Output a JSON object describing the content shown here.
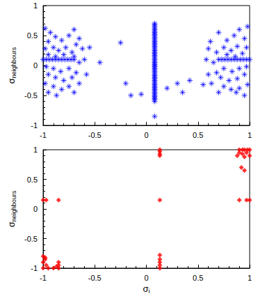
{
  "chart_data": [
    {
      "type": "scatter",
      "color": "#0000ff",
      "marker": "asterisk",
      "ylabel": {
        "text": "σ",
        "subscript": "neighbours"
      },
      "xlim": [
        -1,
        1
      ],
      "xticks": [
        -1,
        -0.5,
        0,
        0.5,
        1
      ],
      "ylim": [
        -1,
        1
      ],
      "yticks": [
        -1,
        -0.5,
        0,
        0.5,
        1
      ],
      "x": [
        0.08,
        0.08,
        0.08,
        0.08,
        0.08,
        0.08,
        0.08,
        0.08,
        0.08,
        0.08,
        0.08,
        0.08,
        0.08,
        0.08,
        0.08,
        0.08,
        0.08,
        0.08,
        0.08,
        0.08,
        0.08,
        0.08,
        0.08,
        0.08,
        0.08,
        0.08,
        0.08,
        0.08,
        0.08,
        0.08,
        0.08,
        0.08,
        0.08,
        0.08,
        0.08,
        0.08,
        0.08,
        0.08,
        0.08,
        0.08,
        0.08,
        0.08,
        0.08,
        0.08,
        0.08,
        0.08,
        0.08,
        0.08,
        0.08,
        0.08,
        0.08,
        0.08,
        0.08,
        0.08,
        -0.25,
        -0.45,
        -0.2,
        -0.15,
        -0.05,
        0.2,
        0.3,
        0.35,
        0.42,
        0.55,
        -1,
        -0.97,
        -0.94,
        -0.91,
        -0.88,
        -0.85,
        -0.82,
        -0.79,
        -0.76,
        -0.73,
        -0.7,
        -0.98,
        -0.93,
        -0.88,
        -0.95,
        -0.82,
        -0.75,
        -0.7,
        -0.65,
        -0.9,
        -0.98,
        -0.85,
        -0.78,
        -0.72,
        -0.68,
        -0.62,
        -0.95,
        -0.88,
        -0.8,
        -0.7,
        -0.65,
        -0.97,
        -0.9,
        -0.83,
        -0.75,
        -0.68,
        -0.95,
        -0.88,
        -0.8,
        -0.72,
        -0.65,
        -0.98,
        -0.9,
        -0.82,
        -0.75,
        -0.7,
        -0.95,
        -0.87,
        -0.6,
        -0.58,
        -0.55,
        0.7,
        0.73,
        0.76,
        0.79,
        0.82,
        0.85,
        0.88,
        0.91,
        0.94,
        0.97,
        1,
        0.98,
        0.9,
        0.85,
        0.95,
        0.78,
        0.7,
        0.62,
        0.88,
        0.97,
        0.82,
        0.75,
        0.68,
        0.6,
        0.93,
        0.86,
        0.78,
        0.65,
        0.97,
        0.9,
        0.83,
        0.75,
        0.68,
        0.95,
        0.88,
        0.8,
        0.72,
        0.63,
        0.98,
        0.9,
        0.82,
        0.75,
        0.7,
        0.95,
        0.87,
        0.58,
        0.6
      ],
      "values": [
        -0.6,
        -0.57,
        -0.55,
        -0.52,
        -0.5,
        -0.47,
        -0.45,
        -0.42,
        -0.4,
        -0.37,
        -0.35,
        -0.32,
        -0.3,
        -0.27,
        -0.25,
        -0.22,
        -0.2,
        -0.17,
        -0.15,
        -0.12,
        -0.1,
        -0.07,
        -0.05,
        -0.02,
        0,
        0.02,
        0.05,
        0.07,
        0.1,
        0.12,
        0.15,
        0.17,
        0.2,
        0.22,
        0.25,
        0.27,
        0.3,
        0.32,
        0.35,
        0.37,
        0.4,
        0.42,
        0.45,
        0.47,
        0.5,
        0.52,
        0.55,
        0.57,
        0.6,
        0.62,
        0.65,
        0.68,
        0.7,
        -0.85,
        0.38,
        0.05,
        -0.3,
        -0.5,
        -0.48,
        -0.38,
        -0.3,
        -0.45,
        -0.25,
        -0.32,
        0.1,
        0.1,
        0.1,
        0.1,
        0.1,
        0.1,
        0.1,
        0.1,
        0.1,
        0.1,
        0.1,
        0.62,
        0.55,
        0.48,
        0.4,
        0.42,
        0.5,
        0.6,
        0.45,
        0.3,
        0.28,
        0.25,
        0.3,
        0.22,
        0.35,
        0.28,
        0.18,
        0.15,
        0.18,
        0.15,
        0.05,
        -0.02,
        -0.05,
        -0.1,
        -0.05,
        -0.12,
        -0.15,
        -0.2,
        -0.25,
        -0.2,
        -0.3,
        -0.3,
        -0.35,
        -0.4,
        -0.35,
        -0.45,
        -0.45,
        -0.5,
        0.1,
        -0.15,
        0.3,
        0.1,
        0.1,
        0.1,
        0.1,
        0.1,
        0.1,
        0.1,
        0.1,
        0.1,
        0.1,
        0.1,
        0.65,
        0.6,
        0.5,
        0.45,
        0.42,
        0.55,
        0.4,
        0.32,
        0.3,
        0.25,
        0.3,
        0.22,
        0.28,
        0.2,
        0.15,
        0.18,
        0.05,
        -0.02,
        -0.05,
        -0.1,
        -0.05,
        -0.12,
        -0.15,
        -0.22,
        -0.25,
        -0.2,
        -0.3,
        -0.32,
        -0.38,
        -0.4,
        -0.35,
        -0.45,
        -0.5,
        -0.45,
        0.1,
        -0.15
      ]
    },
    {
      "type": "scatter",
      "color": "#ff0000",
      "marker": "diamond",
      "xlabel": {
        "text": "σ",
        "subscript": "i"
      },
      "ylabel": {
        "text": "σ",
        "subscript": "neighbours"
      },
      "xlim": [
        -1,
        1
      ],
      "xticks": [
        -1,
        -0.5,
        0,
        0.5,
        1
      ],
      "ylim": [
        -1,
        1
      ],
      "yticks": [
        -1,
        -0.5,
        0,
        0.5,
        1
      ],
      "x": [
        0.9,
        0.93,
        0.95,
        0.98,
        1,
        0.9,
        0.93,
        0.97,
        1,
        0.95,
        0.88,
        0.92,
        0.95,
        0.13,
        0.13,
        0.13,
        0.13,
        0.13,
        0.9,
        0.97,
        1,
        -1,
        -0.97,
        -0.85,
        0.13,
        0.13,
        0.13,
        0.13,
        0.13,
        -1,
        -0.98,
        -1,
        -0.97,
        -1,
        -0.95,
        -0.9,
        -0.87,
        -0.85,
        -0.85,
        -0.85,
        -0.98
      ],
      "values": [
        1,
        1,
        1,
        1,
        1,
        0.95,
        0.93,
        0.95,
        0.9,
        0.88,
        0.9,
        0.7,
        0.65,
        1,
        0.97,
        0.93,
        0.9,
        0.15,
        0.15,
        0.15,
        0.15,
        0.15,
        0.15,
        0.15,
        -0.78,
        -0.85,
        -0.9,
        -0.95,
        -1,
        -0.8,
        -0.85,
        -0.9,
        -0.95,
        -1,
        -1,
        -1,
        -0.97,
        -0.95,
        -0.9,
        -1,
        -0.82
      ]
    }
  ]
}
